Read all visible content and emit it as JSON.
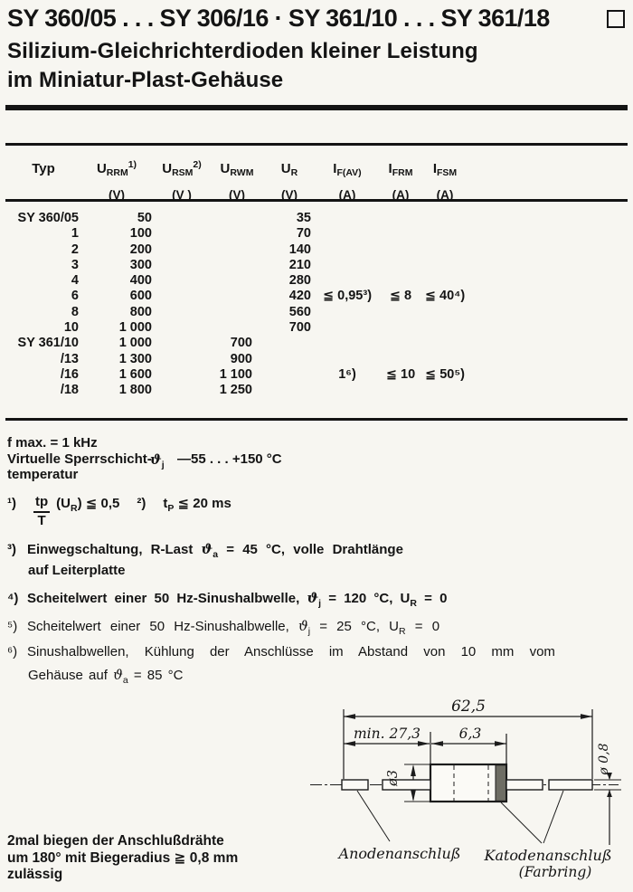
{
  "colors": {
    "ink": "#141414",
    "paper": "#f7f6f1"
  },
  "header": {
    "title": "SY 360/05 . . . SY 306/16 · SY 361/10 . . . SY 361/18",
    "subtitle_line1": "Silizium-Gleichrichterdioden kleiner Leistung",
    "subtitle_line2": "im Miniatur-Plast-Gehäuse"
  },
  "table": {
    "headers": [
      {
        "sym": "Typ",
        "sub": "",
        "sup": "",
        "unit": ""
      },
      {
        "sym": "U",
        "sub": "RRM",
        "sup": "1)",
        "unit": "(V)"
      },
      {
        "sym": "U",
        "sub": "RSM",
        "sup": "2)",
        "unit": "(V )"
      },
      {
        "sym": "U",
        "sub": "RWM",
        "sup": "",
        "unit": "(V)"
      },
      {
        "sym": "U",
        "sub": "R",
        "sup": "",
        "unit": "(V)"
      },
      {
        "sym": "I",
        "sub": "F(AV)",
        "sup": "",
        "unit": "(A)"
      },
      {
        "sym": "I",
        "sub": "FRM",
        "sup": "",
        "unit": "(A)"
      },
      {
        "sym": "I",
        "sub": "FSM",
        "sup": "",
        "unit": "(A)"
      }
    ],
    "rows": [
      {
        "typ": "SY 360/05",
        "urrm": "50",
        "ursm": "",
        "urwm": "",
        "ur": "35",
        "ifav": "",
        "ifrm": "",
        "ifsm": ""
      },
      {
        "typ": "1",
        "urrm": "100",
        "ursm": "",
        "urwm": "",
        "ur": "70",
        "ifav": "",
        "ifrm": "",
        "ifsm": ""
      },
      {
        "typ": "2",
        "urrm": "200",
        "ursm": "",
        "urwm": "",
        "ur": "140",
        "ifav": "",
        "ifrm": "",
        "ifsm": ""
      },
      {
        "typ": "3",
        "urrm": "300",
        "ursm": "",
        "urwm": "",
        "ur": "210",
        "ifav": "",
        "ifrm": "",
        "ifsm": ""
      },
      {
        "typ": "4",
        "urrm": "400",
        "ursm": "",
        "urwm": "",
        "ur": "280",
        "ifav": "",
        "ifrm": "",
        "ifsm": ""
      },
      {
        "typ": "6",
        "urrm": "600",
        "ursm": "",
        "urwm": "",
        "ur": "420",
        "ifav": "≦ 0,95³)",
        "ifrm": "≦ 8",
        "ifsm": "≦ 40⁴)"
      },
      {
        "typ": "8",
        "urrm": "800",
        "ursm": "",
        "urwm": "",
        "ur": "560",
        "ifav": "",
        "ifrm": "",
        "ifsm": ""
      },
      {
        "typ": "10",
        "urrm": "1 000",
        "ursm": "",
        "urwm": "",
        "ur": "700",
        "ifav": "",
        "ifrm": "",
        "ifsm": ""
      },
      {
        "typ": "SY 361/10",
        "urrm": "1 000",
        "ursm": "",
        "urwm": "700",
        "ur": "",
        "ifav": "",
        "ifrm": "",
        "ifsm": ""
      },
      {
        "typ": "/13",
        "urrm": "1 300",
        "ursm": "",
        "urwm": "900",
        "ur": "",
        "ifav": "",
        "ifrm": "",
        "ifsm": ""
      },
      {
        "typ": "/16",
        "urrm": "1 600",
        "ursm": "",
        "urwm": "1 100",
        "ur": "",
        "ifav": "1⁶)",
        "ifrm": "≦ 10",
        "ifsm": "≦ 50⁵)"
      },
      {
        "typ": "/18",
        "urrm": "1 800",
        "ursm": "",
        "urwm": "1 250",
        "ur": "",
        "ifav": "",
        "ifrm": "",
        "ifsm": ""
      }
    ]
  },
  "notes": {
    "fmax": "f max. = 1 kHz",
    "virt_line1": "Virtuelle Sperrschicht-",
    "virt_line2": "temperatur",
    "theta_sym": "ϑ",
    "theta_sub_j": "j",
    "temp_range": "—55 . . . +150 °C"
  },
  "footnotes": {
    "f1": {
      "label": "¹)",
      "frac_top": "tp",
      "frac_bot": "T",
      "t1": "(U",
      "t1sub": "R",
      "t2": ") ≦ 0,5"
    },
    "f2": {
      "label": "²)",
      "t1": "t",
      "t1sub": "P",
      "t2": " ≦ 20 ms"
    },
    "f3": {
      "label": "³)",
      "t1": "Einwegschaltung, R-Last ",
      "theta": "ϑ",
      "tsub": "a",
      "t2": " = 45 °C, volle Drahtlänge",
      "line2": "auf Leiterplatte"
    },
    "f4": {
      "label": "⁴)",
      "t1": "Scheitelwert einer 50 Hz-Sinushalbwelle, ",
      "theta": "ϑ",
      "tsub": "j",
      "t2": " = 120 °C, U",
      "usub": "R",
      "t3": " = 0"
    },
    "f5": {
      "label": "⁵)",
      "t1": "Scheitelwert einer 50 Hz-Sinushalbwelle, ",
      "theta": "ϑ",
      "tsub": "j",
      "t2": " = 25 °C, U",
      "usub": "R",
      "t3": " = 0"
    },
    "f6": {
      "label": "⁶)",
      "t1": "Sinushalbwellen, Kühlung der Anschlüsse im Abstand von 10 mm vom",
      "t2": "Gehäuse auf ",
      "theta": "ϑ",
      "tsub": "a",
      "t3": " = 85 °C"
    }
  },
  "drawing": {
    "dim_total": "62,5",
    "dim_lead": "min. 27,3",
    "dim_body": "6,3",
    "dim_dia_body": "ø3",
    "dim_dia_lead": "ø 0,8",
    "label_anode": "Anodenanschluß",
    "label_cathode": "Katodenanschluß",
    "label_cathode2": "(Farbring)"
  },
  "bend_note": {
    "line1": "2mal biegen der Anschlußdrähte",
    "line2": "um 180° mit Biegeradius ≧ 0,8 mm",
    "line3": "zulässig"
  }
}
